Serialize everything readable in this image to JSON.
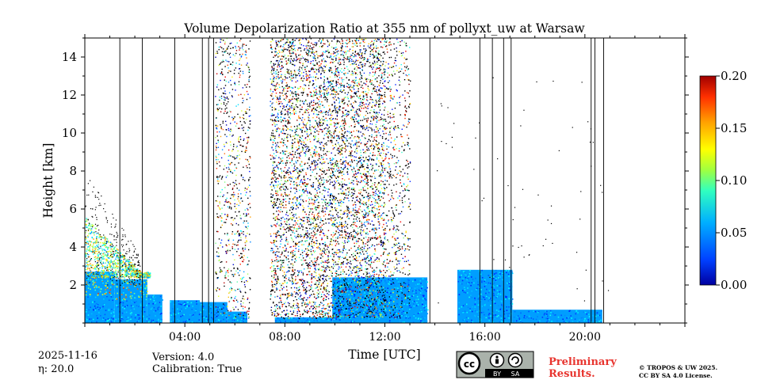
{
  "chart_data": {
    "type": "heatmap",
    "title": "Volume Depolarization Ratio at 355 nm of pollyxt_uw at Warsaw",
    "xlabel": "Time [UTC]",
    "ylabel": "Height [km]",
    "xlim": [
      0,
      24
    ],
    "ylim": [
      0,
      15
    ],
    "x_tick_labels": [
      "04:00",
      "08:00",
      "12:00",
      "16:00",
      "20:00"
    ],
    "y_tick_labels": [
      "2",
      "4",
      "6",
      "8",
      "10",
      "12",
      "14"
    ],
    "colorbar": {
      "min": 0.0,
      "max": 0.2,
      "tick_labels": [
        "0.00",
        "0.05",
        "0.10",
        "0.15",
        "0.20"
      ],
      "colormap": "jet"
    },
    "data_segments": [
      {
        "start": 0.0,
        "end": 1.2,
        "top_km": 2.7,
        "level": "mixed"
      },
      {
        "start": 1.2,
        "end": 2.5,
        "top_km": 2.3,
        "level": "mixed"
      },
      {
        "start": 2.5,
        "end": 3.1,
        "top_km": 1.5,
        "level": "low"
      },
      {
        "start": 3.4,
        "end": 4.6,
        "top_km": 1.2,
        "level": "low"
      },
      {
        "start": 4.6,
        "end": 5.7,
        "top_km": 1.1,
        "level": "low"
      },
      {
        "start": 5.7,
        "end": 6.5,
        "top_km": 0.6,
        "level": "low"
      },
      {
        "start": 7.6,
        "end": 9.9,
        "top_km": 0.3,
        "level": "low"
      },
      {
        "start": 9.9,
        "end": 12.6,
        "top_km": 2.4,
        "level": "low"
      },
      {
        "start": 12.6,
        "end": 13.7,
        "top_km": 2.4,
        "level": "low"
      },
      {
        "start": 14.9,
        "end": 17.1,
        "top_km": 2.8,
        "level": "low"
      },
      {
        "start": 17.1,
        "end": 20.7,
        "top_km": 0.7,
        "level": "low"
      }
    ],
    "noise_segments": [
      {
        "start": 5.2,
        "end": 6.6,
        "density": "medium"
      },
      {
        "start": 7.4,
        "end": 10.0,
        "density": "high"
      },
      {
        "start": 10.0,
        "end": 12.0,
        "density": "high"
      },
      {
        "start": 12.0,
        "end": 13.0,
        "density": "medium"
      }
    ],
    "gap_lines_utc": [
      1.4,
      2.3,
      3.6,
      4.7,
      4.95,
      5.15,
      13.8,
      15.8,
      16.3,
      16.75,
      17.05,
      20.25,
      20.4,
      20.75
    ]
  },
  "footer": {
    "date": "2025-11-16",
    "eta": "η: 20.0",
    "version": "Version: 4.0",
    "calibration": "Calibration: True",
    "preliminary_line1": "Preliminary",
    "preliminary_line2": "Results.",
    "copyright_line1": "© TROPOS & UW 2025.",
    "copyright_line2": "CC BY SA 4.0 License.",
    "license_badge": {
      "cc": "cc",
      "by": "BY",
      "sa": "SA"
    }
  },
  "colors": {
    "preliminary": "#e8342e",
    "badge_bg": "#aab2ab",
    "badge_dark": "#000000"
  }
}
